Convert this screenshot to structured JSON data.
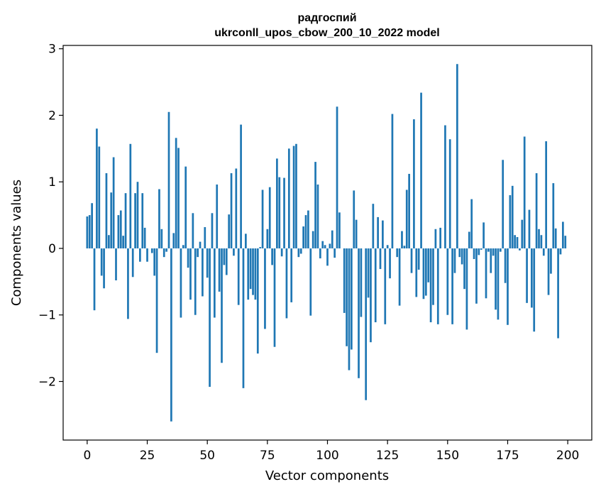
{
  "chart_data": {
    "type": "bar",
    "title": "радгоспий",
    "subtitle": "ukrconll_upos_cbow_200_10_2022 model",
    "xlabel": "Vector components",
    "ylabel": "Components values",
    "xlim": [
      -10,
      210
    ],
    "ylim": [
      -2.88,
      3.05
    ],
    "xticks": [
      0,
      25,
      50,
      75,
      100,
      125,
      150,
      175,
      200
    ],
    "xtick_labels": [
      "0",
      "25",
      "50",
      "75",
      "100",
      "125",
      "150",
      "175",
      "200"
    ],
    "yticks": [
      -2,
      -1,
      0,
      1,
      2,
      3
    ],
    "ytick_labels": [
      "−2",
      "−1",
      "0",
      "1",
      "2",
      "3"
    ],
    "grid": false,
    "bar_color": "#1f77b4",
    "x": [
      0,
      1,
      2,
      3,
      4,
      5,
      6,
      7,
      8,
      9,
      10,
      11,
      12,
      13,
      14,
      15,
      16,
      17,
      18,
      19,
      20,
      21,
      22,
      23,
      24,
      25,
      26,
      27,
      28,
      29,
      30,
      31,
      32,
      33,
      34,
      35,
      36,
      37,
      38,
      39,
      40,
      41,
      42,
      43,
      44,
      45,
      46,
      47,
      48,
      49,
      50,
      51,
      52,
      53,
      54,
      55,
      56,
      57,
      58,
      59,
      60,
      61,
      62,
      63,
      64,
      65,
      66,
      67,
      68,
      69,
      70,
      71,
      72,
      73,
      74,
      75,
      76,
      77,
      78,
      79,
      80,
      81,
      82,
      83,
      84,
      85,
      86,
      87,
      88,
      89,
      90,
      91,
      92,
      93,
      94,
      95,
      96,
      97,
      98,
      99,
      100,
      101,
      102,
      103,
      104,
      105,
      106,
      107,
      108,
      109,
      110,
      111,
      112,
      113,
      114,
      115,
      116,
      117,
      118,
      119,
      120,
      121,
      122,
      123,
      124,
      125,
      126,
      127,
      128,
      129,
      130,
      131,
      132,
      133,
      134,
      135,
      136,
      137,
      138,
      139,
      140,
      141,
      142,
      143,
      144,
      145,
      146,
      147,
      148,
      149,
      150,
      151,
      152,
      153,
      154,
      155,
      156,
      157,
      158,
      159,
      160,
      161,
      162,
      163,
      164,
      165,
      166,
      167,
      168,
      169,
      170,
      171,
      172,
      173,
      174,
      175,
      176,
      177,
      178,
      179,
      180,
      181,
      182,
      183,
      184,
      185,
      186,
      187,
      188,
      189,
      190,
      191,
      192,
      193,
      194,
      195,
      196,
      197,
      198,
      199
    ],
    "values": [
      0.48,
      0.5,
      0.68,
      -0.93,
      1.8,
      1.53,
      -0.41,
      -0.6,
      1.13,
      0.2,
      0.84,
      1.37,
      -0.48,
      0.5,
      0.57,
      0.19,
      0.83,
      -1.06,
      1.57,
      -0.43,
      0.83,
      1.0,
      -0.2,
      0.83,
      0.31,
      -0.2,
      0.0,
      -0.07,
      -0.41,
      -1.57,
      0.89,
      0.29,
      -0.13,
      -0.05,
      2.05,
      -2.6,
      0.23,
      1.66,
      1.51,
      -1.04,
      0.05,
      1.23,
      -0.29,
      -0.77,
      0.53,
      -1.0,
      -0.13,
      0.1,
      -0.72,
      0.32,
      -0.44,
      -2.08,
      0.53,
      -1.04,
      0.96,
      -0.65,
      -1.72,
      -0.25,
      -0.4,
      0.51,
      1.13,
      -0.11,
      1.2,
      -0.85,
      1.86,
      -2.1,
      0.22,
      -0.77,
      -0.61,
      -0.7,
      -0.77,
      -1.58,
      0.02,
      0.88,
      -1.21,
      0.29,
      0.92,
      -0.25,
      -1.48,
      1.35,
      1.07,
      -0.12,
      1.06,
      -1.05,
      1.5,
      -0.81,
      1.54,
      1.57,
      -0.13,
      -0.08,
      0.33,
      0.5,
      0.57,
      -1.01,
      0.26,
      1.3,
      0.96,
      -0.15,
      0.11,
      0.05,
      -0.26,
      0.07,
      0.27,
      -0.14,
      2.13,
      0.54,
      0.0,
      -0.97,
      -1.47,
      -1.83,
      -1.52,
      0.87,
      0.43,
      -1.95,
      -1.03,
      0.0,
      -2.28,
      -0.74,
      -1.41,
      0.67,
      -1.11,
      0.47,
      -0.31,
      0.42,
      -1.14,
      0.05,
      -0.45,
      2.02,
      0.0,
      -0.13,
      -0.86,
      0.26,
      0.04,
      0.88,
      1.12,
      -0.37,
      1.94,
      -0.73,
      -0.32,
      2.34,
      -0.76,
      -0.71,
      -0.51,
      -1.11,
      -0.85,
      0.29,
      -1.14,
      0.31,
      0.0,
      1.85,
      -1.0,
      1.64,
      -1.14,
      -0.37,
      2.77,
      -0.13,
      -0.24,
      -0.61,
      -1.22,
      0.25,
      0.74,
      -0.16,
      -0.83,
      -0.1,
      -0.02,
      0.39,
      -0.75,
      -0.05,
      -0.37,
      -0.11,
      -0.92,
      -1.07,
      -0.05,
      1.33,
      -0.52,
      -1.15,
      0.8,
      0.94,
      0.2,
      0.17,
      -0.03,
      0.43,
      1.68,
      -0.82,
      0.58,
      -0.89,
      -1.25,
      1.13,
      0.29,
      0.2,
      -0.11,
      1.61,
      -0.7,
      -0.38,
      0.98,
      0.3,
      -1.35,
      -0.09,
      0.4,
      0.19
    ]
  }
}
